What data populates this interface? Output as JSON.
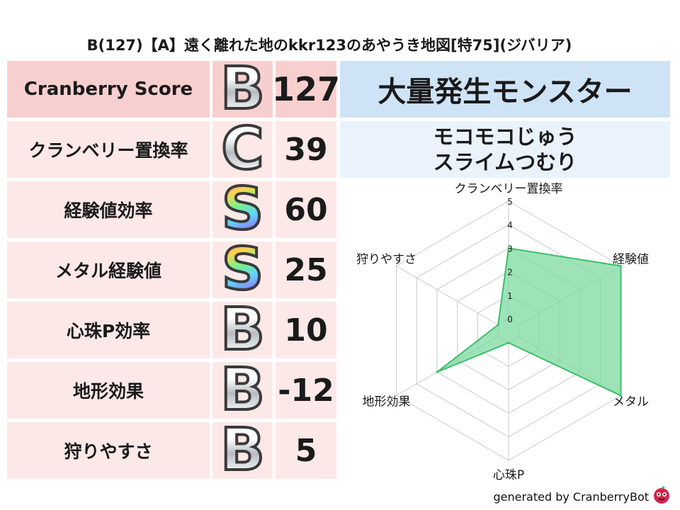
{
  "title": "B(127)【A】遠く離れた地のkkr123のあやうき地図[特75](ジバリア)",
  "scores": [
    {
      "label": "Cranberry Score",
      "rank": "B",
      "style": "metal",
      "value": "127"
    },
    {
      "label": "クランベリー置換率",
      "rank": "C",
      "style": "metal",
      "value": "39"
    },
    {
      "label": "経験値効率",
      "rank": "S",
      "style": "rainbow",
      "value": "60"
    },
    {
      "label": "メタル経験値",
      "rank": "S",
      "style": "rainbow",
      "value": "25"
    },
    {
      "label": "心珠P効率",
      "rank": "B",
      "style": "metal",
      "value": "10"
    },
    {
      "label": "地形効果",
      "rank": "B",
      "style": "metal",
      "value": "-12"
    },
    {
      "label": "狩りやすさ",
      "rank": "B",
      "style": "metal",
      "value": "5"
    }
  ],
  "monster": {
    "header": "大量発生モンスター",
    "names": [
      "モコモコじゅう",
      "スライムつむり"
    ]
  },
  "chart_data": {
    "type": "radar",
    "axes": [
      "クランベリー置換率",
      "経験値",
      "メタル",
      "心珠P",
      "地形効果",
      "狩りやすさ"
    ],
    "ticks": [
      "0",
      "1",
      "2",
      "3",
      "4",
      "5"
    ],
    "range": [
      0,
      5
    ],
    "values": [
      3,
      5,
      5,
      0,
      3,
      0
    ],
    "fill_color": "#7ed9a0",
    "line_color": "#3cbf6a",
    "grid_color": "#c9c9c9"
  },
  "footer": {
    "text": "generated by CranberryBot",
    "icon": "cranberry-bot-icon"
  }
}
